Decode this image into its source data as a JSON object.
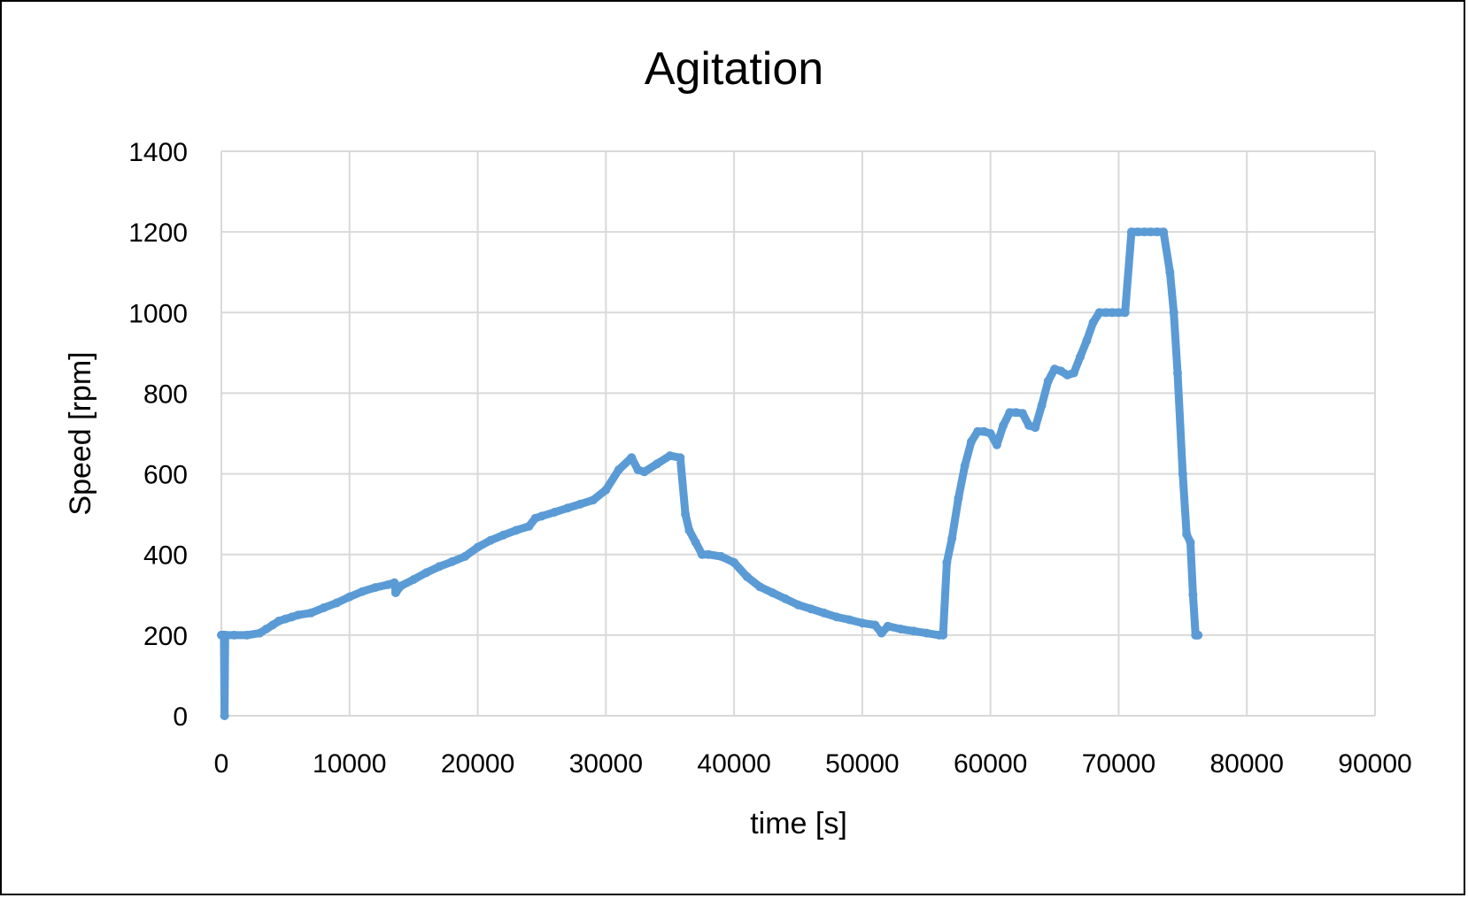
{
  "chart_data": {
    "type": "scatter",
    "title": "Agitation",
    "xlabel": "time [s]",
    "ylabel": "Speed [rpm]",
    "xlim": [
      0,
      90000
    ],
    "ylim": [
      0,
      1400
    ],
    "xticks": [
      "0",
      "10000",
      "20000",
      "30000",
      "40000",
      "50000",
      "60000",
      "70000",
      "80000",
      "90000"
    ],
    "yticks": [
      "0",
      "200",
      "400",
      "600",
      "800",
      "1000",
      "1200",
      "1400"
    ],
    "grid": true,
    "legend": "none",
    "color": "#5b9bd5",
    "series": [
      {
        "x": [
          0,
          100,
          200,
          250,
          300,
          1000,
          2000,
          3000,
          3500,
          4000,
          4500,
          5000,
          5500,
          6000,
          7000,
          8000,
          9000,
          10000,
          11000,
          12000,
          13000,
          13500,
          13600,
          14000,
          15000,
          16000,
          17000,
          18000,
          19000,
          20000,
          21000,
          22000,
          23000,
          24000,
          24500,
          25000,
          26000,
          27000,
          28000,
          29000,
          30000,
          31000,
          32000,
          32500,
          33000,
          34000,
          35000,
          35800,
          36200,
          36500,
          37000,
          37500,
          38000,
          39000,
          40000,
          41000,
          42000,
          43000,
          44000,
          45000,
          46000,
          47000,
          48000,
          49000,
          50000,
          51000,
          51500,
          52000,
          53000,
          54000,
          55000,
          56000,
          56300,
          56600,
          57000,
          57500,
          58000,
          58500,
          59000,
          59500,
          60000,
          60500,
          61000,
          61500,
          62000,
          62500,
          63000,
          63500,
          64000,
          64500,
          65000,
          65500,
          66000,
          66500,
          67000,
          67500,
          68000,
          68500,
          69000,
          69500,
          70000,
          70500,
          71000,
          71500,
          72000,
          72500,
          73000,
          73500,
          74000,
          74300,
          74600,
          75000,
          75300,
          75600,
          75800,
          76000,
          76100,
          76200
        ],
        "y": [
          200,
          200,
          200,
          0,
          200,
          200,
          200,
          205,
          215,
          225,
          235,
          240,
          245,
          250,
          255,
          268,
          280,
          295,
          308,
          318,
          325,
          330,
          305,
          322,
          338,
          355,
          370,
          382,
          395,
          418,
          435,
          448,
          460,
          470,
          490,
          495,
          505,
          515,
          525,
          535,
          560,
          610,
          640,
          610,
          605,
          625,
          645,
          640,
          500,
          460,
          430,
          400,
          400,
          395,
          380,
          345,
          320,
          305,
          290,
          275,
          265,
          255,
          245,
          238,
          230,
          225,
          205,
          222,
          215,
          210,
          205,
          200,
          200,
          380,
          440,
          540,
          620,
          680,
          705,
          705,
          700,
          672,
          720,
          752,
          752,
          750,
          720,
          715,
          770,
          830,
          860,
          855,
          845,
          850,
          890,
          930,
          975,
          1000,
          1000,
          1000,
          1000,
          1000,
          1200,
          1200,
          1200,
          1200,
          1200,
          1200,
          1100,
          1000,
          850,
          600,
          450,
          430,
          300,
          200,
          200,
          200
        ]
      }
    ]
  }
}
